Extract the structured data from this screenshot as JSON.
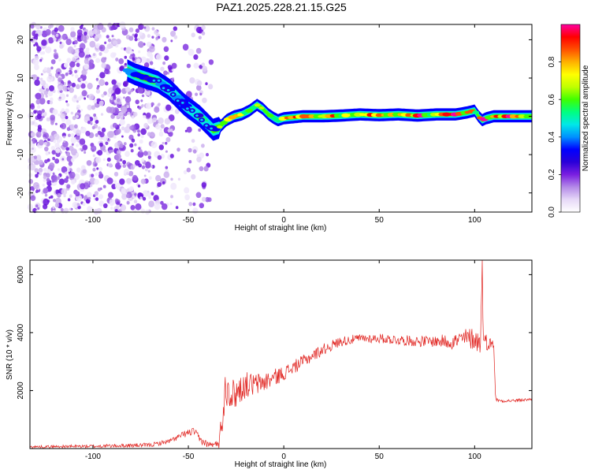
{
  "title": "PAZ1.2025.228.21.15.G25",
  "chart_data": [
    {
      "type": "heatmap",
      "xlabel": "Height of straight line (km)",
      "ylabel": "Frequency (Hz)",
      "xlim": [
        -133,
        130
      ],
      "ylim": [
        -25,
        24
      ],
      "xticks": [
        -100,
        -50,
        0,
        50,
        100
      ],
      "xtick_labels": [
        "-100",
        "-50",
        "0",
        "50",
        "100"
      ],
      "yticks": [
        -20,
        -10,
        0,
        10,
        20
      ],
      "ytick_labels": [
        "-20",
        "-10",
        "0",
        "10",
        "20"
      ],
      "ridge": {
        "x": [
          -82,
          -78,
          -72,
          -66,
          -60,
          -56,
          -52,
          -48,
          -44,
          -40,
          -37,
          -34,
          -30,
          -26,
          -22,
          -18,
          -14,
          -11,
          -8,
          -5,
          -3,
          0,
          10,
          20,
          30,
          40,
          50,
          60,
          70,
          80,
          90,
          96,
          100,
          102,
          104,
          106,
          110,
          120,
          130
        ],
        "y": [
          12,
          11,
          10,
          9,
          7,
          5,
          3,
          1.5,
          0,
          -2,
          -3.5,
          -3,
          -1,
          0,
          0.5,
          1.5,
          3,
          2,
          0.5,
          -0.5,
          -1,
          -0.5,
          0,
          0,
          0.2,
          0.5,
          0.3,
          0.5,
          0.2,
          0.5,
          0.5,
          1,
          1.5,
          0,
          -1,
          -0.5,
          0,
          0,
          0
        ]
      },
      "noise_region_x": [
        -133,
        -38
      ],
      "colorbar": {
        "label": "Normalized spectral amplitude",
        "range": [
          0,
          1
        ],
        "ticks": [
          0.0,
          0.2,
          0.4,
          0.6,
          0.8
        ],
        "tick_labels": [
          "0.0",
          "0.2",
          "0.4",
          "0.6",
          "0.8"
        ],
        "colormap": [
          "#ffffff",
          "#e6d8f7",
          "#b48ae8",
          "#7a1fe0",
          "#2a00d8",
          "#0000ff",
          "#0090ff",
          "#00e8e8",
          "#00ff80",
          "#40ff00",
          "#c0ff00",
          "#ffff00",
          "#ffb000",
          "#ff5000",
          "#ff0000",
          "#ff00a0"
        ]
      }
    },
    {
      "type": "line",
      "xlabel": "Height of straight line (km)",
      "ylabel": "SNR (10 * v/v)",
      "xlim": [
        -133,
        130
      ],
      "ylim": [
        0,
        6500
      ],
      "xticks": [
        -100,
        -50,
        0,
        50,
        100
      ],
      "xtick_labels": [
        "-100",
        "-50",
        "0",
        "50",
        "100"
      ],
      "yticks": [
        2000,
        4000,
        6000
      ],
      "ytick_labels": [
        "2000",
        "4000",
        "6000"
      ],
      "color": "#e0201c",
      "envelope": {
        "x": [
          -133,
          -100,
          -70,
          -60,
          -52,
          -47,
          -44,
          -40,
          -36,
          -33,
          -31,
          -29,
          -27,
          -24,
          -20,
          -15,
          -10,
          -5,
          0,
          10,
          20,
          30,
          40,
          50,
          60,
          70,
          80,
          90,
          95,
          100,
          103,
          104,
          104.5,
          105,
          107,
          110,
          111,
          113,
          120,
          130
        ],
        "y": [
          60,
          80,
          120,
          250,
          500,
          600,
          300,
          150,
          120,
          500,
          2000,
          2200,
          1800,
          2000,
          2200,
          2200,
          2300,
          2450,
          2600,
          3000,
          3400,
          3700,
          3800,
          3800,
          3750,
          3700,
          3700,
          3700,
          3800,
          3800,
          3600,
          6500,
          3800,
          3700,
          3650,
          3600,
          1700,
          1650,
          1650,
          1700
        ]
      },
      "noise_amplitude": {
        "x": [
          -133,
          -60,
          -45,
          -36,
          -32,
          -20,
          0,
          20,
          40,
          80,
          100,
          104,
          111,
          130
        ],
        "y": [
          40,
          80,
          150,
          80,
          700,
          450,
          250,
          200,
          150,
          200,
          400,
          400,
          60,
          50
        ]
      }
    }
  ]
}
